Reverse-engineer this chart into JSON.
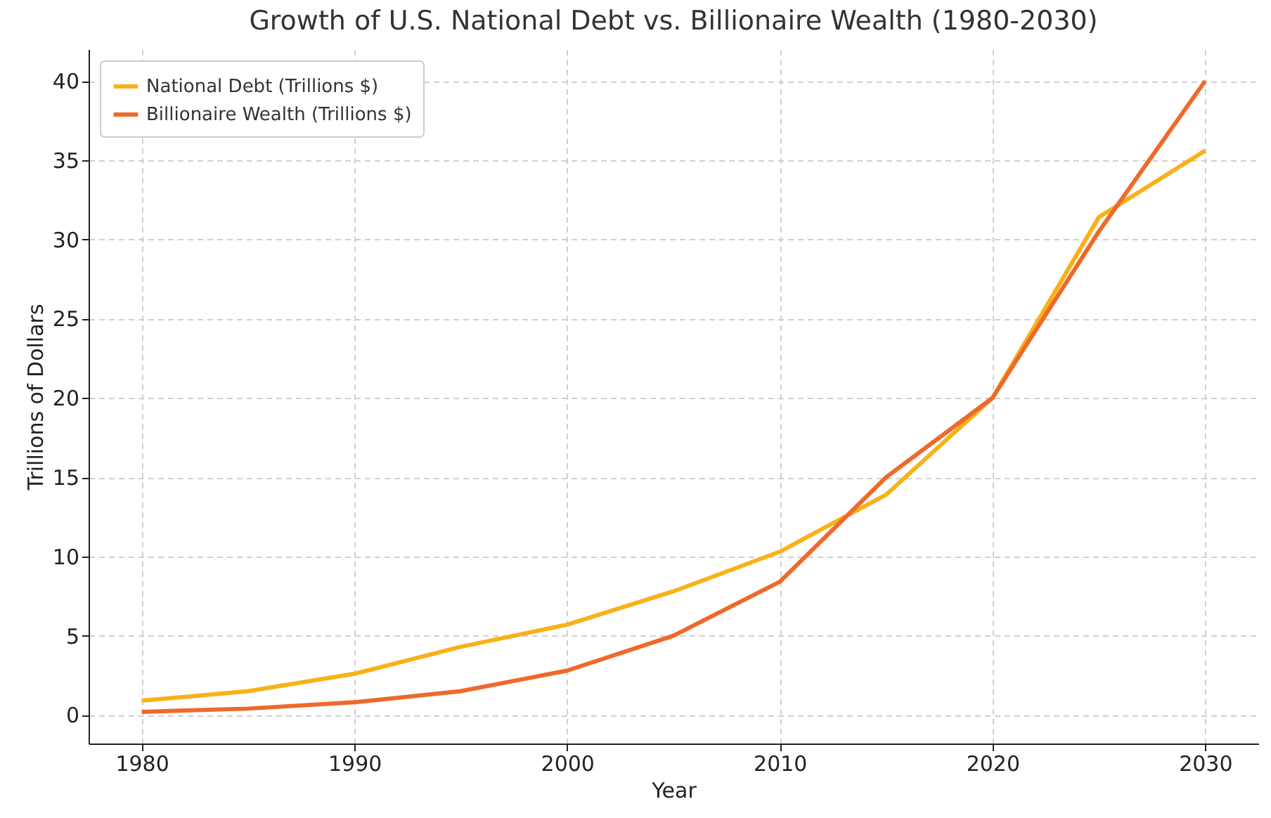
{
  "chart_data": {
    "type": "line",
    "title": "Growth of U.S. National Debt vs. Billionaire Wealth (1980-2030)",
    "xlabel": "Year",
    "ylabel": "Trillions of Dollars",
    "x": [
      1980,
      1985,
      1990,
      1995,
      2000,
      2005,
      2010,
      2015,
      2020,
      2025,
      2030
    ],
    "series": [
      {
        "name": "National Debt (Trillions $)",
        "color": "#f9b118",
        "values": [
          0.9,
          1.5,
          2.6,
          4.3,
          5.7,
          7.8,
          10.3,
          13.9,
          20,
          31.4,
          35.6
        ]
      },
      {
        "name": "Billionaire Wealth (Trillions $)",
        "color": "#ee6a2a",
        "values": [
          0.2,
          0.4,
          0.8,
          1.5,
          2.8,
          5.0,
          8.4,
          15,
          20,
          30.5,
          40
        ]
      }
    ],
    "xlim": [
      1977.5,
      2032.5
    ],
    "xticks": [
      1980,
      1990,
      2000,
      2010,
      2020,
      2030
    ],
    "ylim": [
      -1.8,
      42
    ],
    "yticks": [
      0,
      5,
      10,
      15,
      20,
      25,
      30,
      35,
      40
    ],
    "grid": true,
    "legend": "top left",
    "line_style": "solid",
    "marker": "none"
  }
}
